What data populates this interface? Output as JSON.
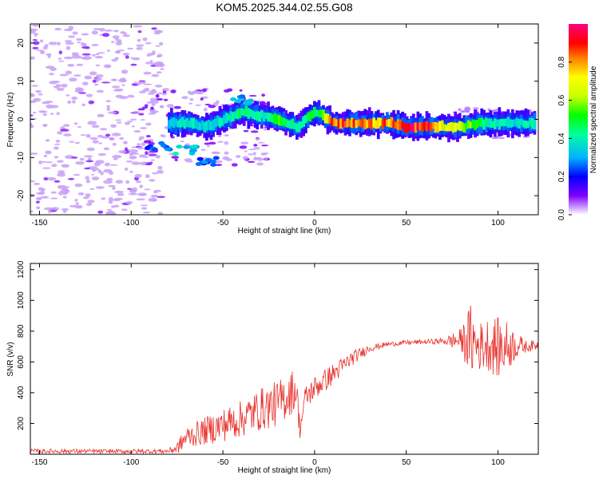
{
  "chart_data": [
    {
      "type": "heatmap",
      "title": "KOM5.2025.344.02.55.G08",
      "xlabel": "Height of straight line (km)",
      "ylabel": "Frequency (Hz)",
      "xlim": [
        -155,
        122
      ],
      "ylim": [
        -25,
        25
      ],
      "xticks": [
        -150,
        -100,
        -50,
        0,
        50,
        100
      ],
      "yticks": [
        -20,
        -10,
        0,
        10,
        20
      ],
      "colorbar": {
        "label": "Normalized spectral amplitude",
        "range": [
          0,
          1
        ],
        "ticks": [
          "0.0",
          "0.2",
          "0.4",
          "0.6",
          "0.8"
        ],
        "tick_values": [
          0.0,
          0.2,
          0.4,
          0.6,
          0.8
        ]
      },
      "ridge": {
        "description": "dominant frequency ridge",
        "x": [
          -80,
          -70,
          -60,
          -50,
          -40,
          -30,
          -20,
          -10,
          -3,
          0,
          10,
          20,
          30,
          40,
          50,
          60,
          70,
          80,
          90,
          100,
          110,
          120
        ],
        "freq": [
          -1,
          -1,
          -2,
          0,
          2,
          1,
          0,
          -2,
          1,
          2,
          -1,
          -1,
          -1,
          -1,
          -2,
          -2,
          -2,
          -2,
          -1,
          -1,
          -1,
          -1
        ],
        "amplitude": [
          0.35,
          0.4,
          0.35,
          0.4,
          0.45,
          0.4,
          0.55,
          0.4,
          0.5,
          0.45,
          0.9,
          0.85,
          0.8,
          0.85,
          0.95,
          0.9,
          0.7,
          0.65,
          0.45,
          0.4,
          0.35,
          0.45
        ]
      },
      "secondary_patches": [
        {
          "x": -70,
          "freq": -8,
          "amplitude": 0.35
        },
        {
          "x": -58,
          "freq": -11,
          "amplitude": 0.25
        },
        {
          "x": -40,
          "freq": 5,
          "amplitude": 0.3
        },
        {
          "x": -85,
          "freq": -7,
          "amplitude": 0.25
        }
      ]
    },
    {
      "type": "line",
      "xlabel": "Height of straight line (km)",
      "ylabel": "SNR (v/v)",
      "xlim": [
        -155,
        122
      ],
      "ylim": [
        0,
        1240
      ],
      "xticks": [
        -150,
        -100,
        -50,
        0,
        50,
        100
      ],
      "yticks": [
        200,
        400,
        600,
        800,
        1000,
        1200
      ],
      "series": [
        {
          "name": "SNR",
          "color": "#e8302a",
          "x": [
            -155,
            -130,
            -110,
            -90,
            -80,
            -75,
            -70,
            -60,
            -50,
            -40,
            -30,
            -20,
            -15,
            -10,
            -8,
            -5,
            0,
            10,
            20,
            30,
            40,
            50,
            60,
            70,
            80,
            85,
            90,
            95,
            100,
            105,
            110,
            115,
            122
          ],
          "y": [
            20,
            20,
            18,
            20,
            20,
            40,
            110,
            150,
            190,
            230,
            290,
            330,
            380,
            430,
            160,
            370,
            430,
            520,
            620,
            690,
            715,
            725,
            730,
            735,
            740,
            740,
            700,
            720,
            690,
            700,
            710,
            700,
            710
          ],
          "spread": [
            15,
            15,
            15,
            15,
            15,
            40,
            70,
            90,
            110,
            120,
            140,
            150,
            150,
            140,
            60,
            80,
            80,
            70,
            50,
            25,
            15,
            15,
            15,
            20,
            80,
            240,
            160,
            180,
            200,
            170,
            90,
            40,
            30
          ]
        }
      ]
    }
  ]
}
